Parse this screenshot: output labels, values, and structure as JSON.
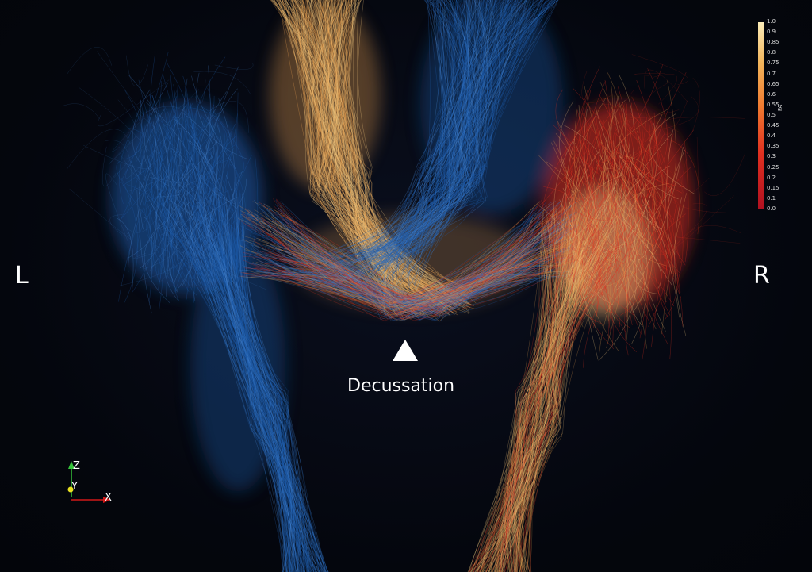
{
  "labels": {
    "left": "L",
    "right": "R",
    "decussation": "Decussation"
  },
  "colorbar": {
    "title": "FA",
    "ticks": [
      "1.0",
      "0.9",
      "0.85",
      "0.8",
      "0.75",
      "0.7",
      "0.65",
      "0.6",
      "0.55",
      "0.5",
      "0.45",
      "0.4",
      "0.35",
      "0.3",
      "0.25",
      "0.2",
      "0.15",
      "0.1",
      "0.0"
    ],
    "colors": [
      "#b01020",
      "#e03020",
      "#f07a30",
      "#f2b45a",
      "#fbecb8"
    ]
  },
  "axes": {
    "z": "Z",
    "y": "Y",
    "x": "X",
    "z_color": "#35c23a",
    "y_color": "#e8e020",
    "x_color": "#d21818"
  },
  "tract_colors": {
    "blue": "#1f5fb0",
    "blue_light": "#4a8ad6",
    "orange": "#e8a050",
    "red": "#e03020",
    "cream": "#f3c880"
  }
}
